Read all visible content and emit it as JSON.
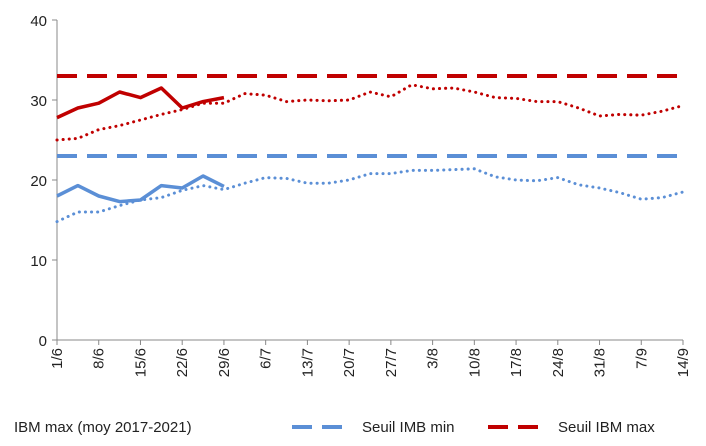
{
  "chart_data": {
    "type": "line",
    "categories": [
      "1/6",
      null,
      "8/6",
      null,
      "15/6",
      null,
      "22/6",
      null,
      "29/6",
      null,
      "6/7",
      null,
      "13/7",
      null,
      "20/7",
      null,
      "27/7",
      null,
      "3/8",
      null,
      "10/8",
      null,
      "17/8",
      null,
      "24/8",
      null,
      "31/8",
      null,
      "7/9",
      null,
      "14/9"
    ],
    "series": [
      {
        "name": "IBM max (moy 2017-2021)",
        "color": "#c00000",
        "style": "dotted",
        "values": [
          25.0,
          25.2,
          26.3,
          26.8,
          27.5,
          28.2,
          28.8,
          29.6,
          29.6,
          30.8,
          30.6,
          29.8,
          30.0,
          29.9,
          30.0,
          31.0,
          30.4,
          31.9,
          31.4,
          31.5,
          31.0,
          30.3,
          30.2,
          29.8,
          29.8,
          29.0,
          28.0,
          28.2,
          28.1,
          28.6,
          29.3
        ]
      },
      {
        "name": "Seuil IMB min",
        "color": "#5b8fd6",
        "style": "dashed",
        "values": [
          23,
          23,
          23,
          23,
          23,
          23,
          23,
          23,
          23,
          23,
          23,
          23,
          23,
          23,
          23,
          23,
          23,
          23,
          23,
          23,
          23,
          23,
          23,
          23,
          23,
          23,
          23,
          23,
          23,
          23,
          23
        ]
      },
      {
        "name": "Seuil IBM max",
        "color": "#c00000",
        "style": "dashed",
        "values": [
          33,
          33,
          33,
          33,
          33,
          33,
          33,
          33,
          33,
          33,
          33,
          33,
          33,
          33,
          33,
          33,
          33,
          33,
          33,
          33,
          33,
          33,
          33,
          33,
          33,
          33,
          33,
          33,
          33,
          33,
          33
        ]
      },
      {
        "color": "#5b8fd6",
        "style": "dotted",
        "values": [
          14.8,
          16.0,
          16.0,
          16.8,
          17.5,
          17.8,
          18.7,
          19.3,
          18.8,
          19.6,
          20.3,
          20.2,
          19.6,
          19.6,
          20.0,
          20.8,
          20.8,
          21.2,
          21.2,
          21.3,
          21.4,
          20.4,
          20.0,
          19.9,
          20.3,
          19.4,
          19.0,
          18.4,
          17.6,
          17.8,
          18.5
        ]
      },
      {
        "color": "#c00000",
        "style": "solid",
        "values": [
          27.8,
          29.0,
          29.6,
          31.0,
          30.3,
          31.5,
          29.0,
          29.8,
          30.3,
          null,
          null,
          null,
          null,
          null,
          null,
          null,
          null,
          null,
          null,
          null,
          null,
          null,
          null,
          null,
          null,
          null,
          null,
          null,
          null,
          null,
          null
        ]
      },
      {
        "color": "#5b8fd6",
        "style": "solid",
        "values": [
          18.0,
          19.3,
          18.0,
          17.3,
          17.5,
          19.3,
          19.0,
          20.5,
          19.2,
          null,
          null,
          null,
          null,
          null,
          null,
          null,
          null,
          null,
          null,
          null,
          null,
          null,
          null,
          null,
          null,
          null,
          null,
          null,
          null,
          null,
          null
        ]
      }
    ],
    "ylim": [
      0,
      40
    ],
    "yticks": [
      0,
      10,
      20,
      30,
      40
    ]
  }
}
